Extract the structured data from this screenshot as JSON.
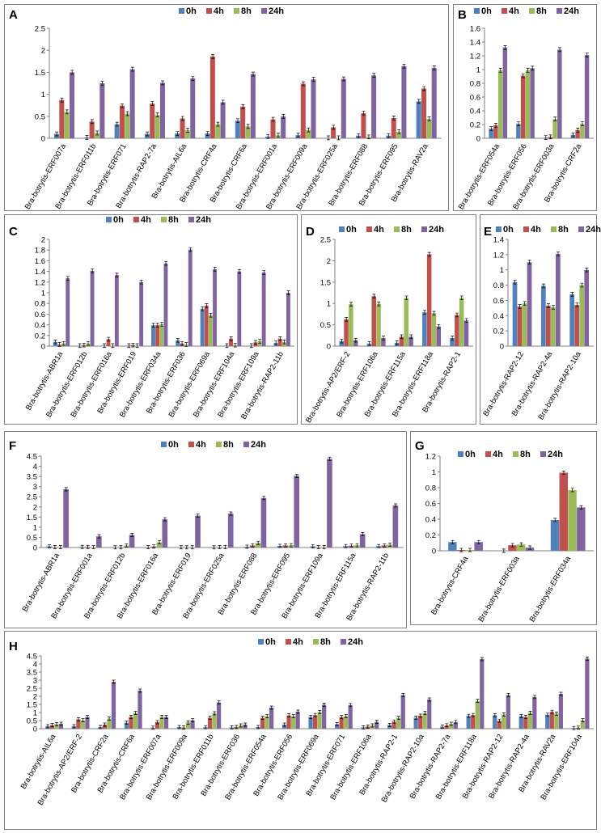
{
  "colors": {
    "0h": "#4f81bd",
    "4h": "#c0504d",
    "8h": "#9bbb59",
    "24h": "#8064a2"
  },
  "legend": [
    "0h",
    "4h",
    "8h",
    "24h"
  ],
  "chart_data": [
    {
      "panel": "A",
      "type": "bar",
      "series_names": [
        "0h",
        "4h",
        "8h",
        "24h"
      ],
      "ylim": [
        0,
        2.5
      ],
      "yticks": [
        "0",
        "0.5",
        "1",
        "1.5",
        "2",
        "2.5"
      ],
      "ytick_values": [
        0,
        0.5,
        1,
        1.5,
        2,
        2.5
      ],
      "categories": [
        "Bra-botrytis-ERF007a",
        "Bra-botrytis-ERF011b",
        "Bra-botrytis-ERF071",
        "Bra-botrytis-RAP2-7a",
        "Bra-botrytis-AIL6a",
        "Bra-botrytis-CRF4a",
        "Bra-botrytis-CRF6a",
        "Bra-botrytis-ERF001a",
        "Bra-botrytis-ERF009a",
        "Bra-botrytis-ERF025a",
        "Bra-botrytis-ERF088",
        "Bra-botrytis-ERF095",
        "Bra-botrytis-RAV2a"
      ],
      "values": [
        [
          0.1,
          0.87,
          0.6,
          1.5
        ],
        [
          0.02,
          0.38,
          0.12,
          1.25
        ],
        [
          0.32,
          0.74,
          0.56,
          1.57
        ],
        [
          0.1,
          0.79,
          0.53,
          1.26
        ],
        [
          0.11,
          0.45,
          0.18,
          1.36
        ],
        [
          0.11,
          1.86,
          0.32,
          0.82
        ],
        [
          0.4,
          0.72,
          0.27,
          1.46
        ],
        [
          0.04,
          0.43,
          0.07,
          0.5
        ],
        [
          0.07,
          1.24,
          0.19,
          1.34
        ],
        [
          0.01,
          0.25,
          0.01,
          1.35
        ],
        [
          0.06,
          0.57,
          0.03,
          1.43
        ],
        [
          0.06,
          0.46,
          0.15,
          1.64
        ],
        [
          0.84,
          1.13,
          0.44,
          1.6
        ]
      ]
    },
    {
      "panel": "B",
      "type": "bar",
      "series_names": [
        "0h",
        "4h",
        "8h",
        "24h"
      ],
      "ylim": [
        0,
        1.6
      ],
      "yticks": [
        "0",
        "0.2",
        "0.4",
        "0.6",
        "0.8",
        "1",
        "1.2",
        "1.4",
        "1.6"
      ],
      "ytick_values": [
        0,
        0.2,
        0.4,
        0.6,
        0.8,
        1,
        1.2,
        1.4,
        1.6
      ],
      "categories": [
        "Bra-botrytis-ERF054a",
        "Bra-botrytis-ERF056",
        "Bra-botrytis-ERF003a",
        "Bra-botrytis-CRF2a"
      ],
      "values": [
        [
          0.14,
          0.19,
          0.99,
          1.32
        ],
        [
          0.21,
          0.91,
          0.99,
          1.02
        ],
        [
          0.01,
          0.02,
          0.28,
          1.29
        ],
        [
          0.05,
          0.12,
          0.21,
          1.21
        ]
      ]
    },
    {
      "panel": "C",
      "type": "bar",
      "series_names": [
        "0h",
        "4h",
        "8h",
        "24h"
      ],
      "ylim": [
        0,
        2
      ],
      "yticks": [
        "0",
        "0.2",
        "0.4",
        "0.6",
        "0.8",
        "1",
        "1.2",
        "1.4",
        "1.6",
        "1.8",
        "2"
      ],
      "ytick_values": [
        0,
        0.2,
        0.4,
        0.6,
        0.8,
        1,
        1.2,
        1.4,
        1.6,
        1.8,
        2
      ],
      "categories": [
        "Bra-botrytis-ABR1a",
        "Bra-botrytis-ERF012b",
        "Bra-botrytis-ERF016a",
        "Bra-botrytis-ERF019",
        "Bra-botrytis-ERF034a",
        "Bra-botrytis-ERF036",
        "Bra-botrytis-ERF069a",
        "Bra-botrytis-ERF104a",
        "Bra-botrytis-ERF109a",
        "Bra-botrytis-RAP2-11b"
      ],
      "values": [
        [
          0.08,
          0.03,
          0.05,
          1.27
        ],
        [
          0.01,
          0.02,
          0.05,
          1.41
        ],
        [
          0.01,
          0.13,
          0.01,
          1.33
        ],
        [
          0.01,
          0.02,
          0.01,
          1.2
        ],
        [
          0.39,
          0.39,
          0.41,
          1.55
        ],
        [
          0.11,
          0.05,
          0.03,
          1.81
        ],
        [
          0.7,
          0.76,
          0.58,
          1.44
        ],
        [
          0.01,
          0.14,
          0.02,
          1.4
        ],
        [
          0.01,
          0.07,
          0.09,
          1.38
        ],
        [
          0.06,
          0.14,
          0.08,
          1.0
        ]
      ]
    },
    {
      "panel": "D",
      "type": "bar",
      "series_names": [
        "0h",
        "4h",
        "8h",
        "24h"
      ],
      "ylim": [
        0,
        2.5
      ],
      "yticks": [
        "0",
        "0.5",
        "1",
        "1.5",
        "2",
        "2.5"
      ],
      "ytick_values": [
        0,
        0.5,
        1,
        1.5,
        2,
        2.5
      ],
      "categories": [
        "Bra-botrytis-AP2/ERF-2",
        "Bra-botrytis-ERF106a",
        "Bra-botrytis-ERF115a",
        "Bra-botrytis-ERF118a",
        "Bra-botrytis-RAP2-1"
      ],
      "values": [
        [
          0.12,
          0.63,
          0.98,
          0.14
        ],
        [
          0.06,
          1.17,
          0.99,
          0.19
        ],
        [
          0.08,
          0.22,
          1.13,
          0.22
        ],
        [
          0.79,
          2.15,
          0.77,
          0.46
        ],
        [
          0.19,
          0.73,
          1.13,
          0.6
        ]
      ]
    },
    {
      "panel": "E",
      "type": "bar",
      "series_names": [
        "0h",
        "4h",
        "8h",
        "24h"
      ],
      "ylim": [
        0,
        1.4
      ],
      "yticks": [
        "0",
        "0.2",
        "0.4",
        "0.6",
        "0.8",
        "1",
        "1.2",
        "1.4"
      ],
      "ytick_values": [
        0,
        0.2,
        0.4,
        0.6,
        0.8,
        1,
        1.2,
        1.4
      ],
      "categories": [
        "Bra-botrytis-RAP2-12",
        "Bra-botrytis-RAP2-4a",
        "Bra-botrytis-RAP2-10a"
      ],
      "values": [
        [
          0.84,
          0.52,
          0.56,
          1.1
        ],
        [
          0.79,
          0.53,
          0.51,
          1.21
        ],
        [
          0.68,
          0.54,
          0.8,
          1.0
        ]
      ]
    },
    {
      "panel": "F",
      "type": "bar",
      "series_names": [
        "0h",
        "4h",
        "8h",
        "24h"
      ],
      "ylim": [
        0,
        4.5
      ],
      "yticks": [
        "0",
        "0.5",
        "1",
        "1.5",
        "2",
        "2.5",
        "3",
        "3.5",
        "4",
        "4.5"
      ],
      "ytick_values": [
        0,
        0.5,
        1,
        1.5,
        2,
        2.5,
        3,
        3.5,
        4,
        4.5
      ],
      "categories": [
        "Bra-botrytis-ABR1a",
        "Bra-botrytis-ERF001a",
        "Bra-botrytis-ERF012b",
        "Bra-botrytis-ERF016a",
        "Bra-botrytis-ERF019",
        "Bra-botrytis-ERF025a",
        "Bra-botrytis-ERF088",
        "Bra-botrytis-ERF095",
        "Bra-botrytis-ERF109a",
        "Bra-botrytis-ERF115a",
        "Bra-botrytis-RAP2-11b"
      ],
      "values": [
        [
          0.06,
          0.02,
          0.02,
          2.87
        ],
        [
          0.03,
          0.03,
          0.02,
          0.55
        ],
        [
          0.01,
          0.01,
          0.1,
          0.62
        ],
        [
          0.02,
          0.05,
          0.26,
          1.39
        ],
        [
          0.01,
          0.01,
          0.01,
          1.57
        ],
        [
          0.01,
          0.02,
          0.02,
          1.67
        ],
        [
          0.04,
          0.1,
          0.23,
          2.44
        ],
        [
          0.08,
          0.1,
          0.11,
          3.53
        ],
        [
          0.06,
          0.02,
          0.02,
          4.37
        ],
        [
          0.07,
          0.09,
          0.11,
          0.66
        ],
        [
          0.07,
          0.1,
          0.14,
          2.07
        ]
      ]
    },
    {
      "panel": "G",
      "type": "bar",
      "series_names": [
        "0h",
        "4h",
        "8h",
        "24h"
      ],
      "ylim": [
        0,
        1.2
      ],
      "yticks": [
        "0",
        "0.2",
        "0.4",
        "0.6",
        "0.8",
        "1",
        "1.2"
      ],
      "ytick_values": [
        0,
        0.2,
        0.4,
        0.6,
        0.8,
        1,
        1.2
      ],
      "categories": [
        "Bra-botrytis-CRF4a",
        "Bra-botrytis-ERF003a",
        "Bra-botrytis-ERF034a"
      ],
      "values": [
        [
          0.11,
          0.01,
          0.01,
          0.11
        ],
        [
          0.0,
          0.07,
          0.08,
          0.04
        ],
        [
          0.39,
          0.99,
          0.77,
          0.55
        ]
      ]
    },
    {
      "panel": "H",
      "type": "bar",
      "series_names": [
        "0h",
        "4h",
        "8h",
        "24h"
      ],
      "ylim": [
        0,
        4.5
      ],
      "yticks": [
        "0",
        "0.5",
        "1",
        "1.5",
        "2",
        "2.5",
        "3",
        "3.5",
        "4",
        "4.5"
      ],
      "ytick_values": [
        0,
        0.5,
        1,
        1.5,
        2,
        2.5,
        3,
        3.5,
        4,
        4.5
      ],
      "categories": [
        "Bra-botrytis-AIL6a",
        "Bra-botrytis-AP2/ERF-2",
        "Bra-botrytis-CRF2a",
        "Bra-botrytis-CRF6a",
        "Bra-botrytis-ERF007a",
        "Bra-botrytis-ERF009a",
        "Bra-botrytis-ERF011b",
        "Bra-botrytis-ERF036",
        "Bra-botrytis-ERF054a",
        "Bra-botrytis-ERF056",
        "Bra-botrytis-ERF069a",
        "Bra-botrytis-ERF071",
        "Bra-botrytis-ERF106a",
        "Bra-botrytis-RAP2-1",
        "Bra-botrytis-RAP2-10a",
        "Bra-botrytis-RAP2-7a",
        "Bra-botrytis-ERF118a",
        "Bra-botrytis-RAP2-12",
        "Bra-botrytis-RAP2-4a",
        "Bra-botrytis-RAV2a",
        "Bra-botrytis-ERF104a"
      ],
      "values": [
        [
          0.15,
          0.22,
          0.28,
          0.3
        ],
        [
          0.15,
          0.58,
          0.52,
          0.72
        ],
        [
          0.1,
          0.25,
          0.62,
          2.9
        ],
        [
          0.37,
          0.73,
          0.97,
          2.35
        ],
        [
          0.06,
          0.4,
          0.73,
          0.72
        ],
        [
          0.1,
          0.07,
          0.38,
          0.52
        ],
        [
          0.09,
          0.67,
          0.95,
          1.62
        ],
        [
          0.08,
          0.1,
          0.2,
          0.25
        ],
        [
          0.1,
          0.67,
          0.77,
          1.3
        ],
        [
          0.25,
          0.82,
          0.77,
          1.05
        ],
        [
          0.72,
          0.84,
          1.03,
          1.48
        ],
        [
          0.28,
          0.72,
          0.78,
          1.46
        ],
        [
          0.08,
          0.13,
          0.2,
          0.42
        ],
        [
          0.23,
          0.44,
          0.67,
          2.08
        ],
        [
          0.68,
          0.8,
          0.97,
          1.8
        ],
        [
          0.12,
          0.21,
          0.3,
          0.41
        ],
        [
          0.79,
          0.84,
          1.72,
          4.3
        ],
        [
          0.83,
          0.49,
          0.87,
          2.08
        ],
        [
          0.78,
          0.73,
          0.98,
          1.96
        ],
        [
          0.86,
          1.04,
          0.93,
          2.15
        ],
        [
          0.04,
          0.06,
          0.52,
          4.33
        ]
      ]
    }
  ]
}
